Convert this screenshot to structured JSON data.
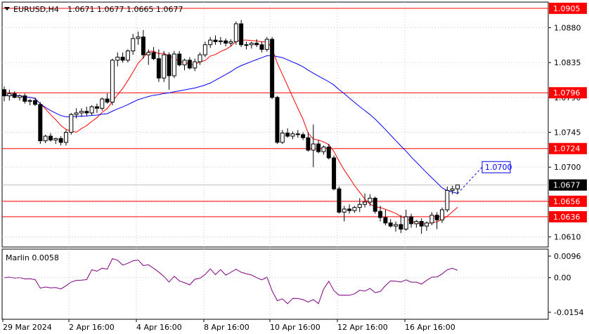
{
  "header": {
    "symbol": "EURUSD,H4",
    "ohlc": "1.0671 1.0677 1.0665 1.0677"
  },
  "indicator": {
    "label": "Marlin 0.0058"
  },
  "chart_data": {
    "type": "candlestick",
    "price_ticks": [
      "1.0880",
      "1.0835",
      "1.0790",
      "1.0745",
      "1.0700",
      "1.0655",
      "1.0610"
    ],
    "osc_ticks": [
      "0.0096",
      "0.00",
      "-0.0154"
    ],
    "time_labels": [
      "29 Mar 2024",
      "2 Apr 16:00",
      "4 Apr 16:00",
      "8 Apr 16:00",
      "10 Apr 16:00",
      "12 Apr 16:00",
      "16 Apr 16:00"
    ],
    "levels": [
      {
        "label": "1.0905",
        "value": 1.0905
      },
      {
        "label": "1.0796",
        "value": 1.0796
      },
      {
        "label": "1.0724",
        "value": 1.0724
      },
      {
        "label": "1.0656",
        "value": 1.0656
      },
      {
        "label": "1.0636",
        "value": 1.0636
      }
    ],
    "current_price": {
      "label": "1.0677",
      "value": 1.0677
    },
    "ma_target": {
      "label": "1.0700",
      "value": 1.07
    },
    "price_range": [
      1.0597,
      1.0913
    ],
    "osc_range": [
      -0.0154,
      0.0096
    ],
    "colors": {
      "candle": "#000000",
      "level": "#ff0000",
      "ma_fast": "#ff0000",
      "ma_slow": "#0000ff",
      "oscillator": "#800080"
    }
  }
}
